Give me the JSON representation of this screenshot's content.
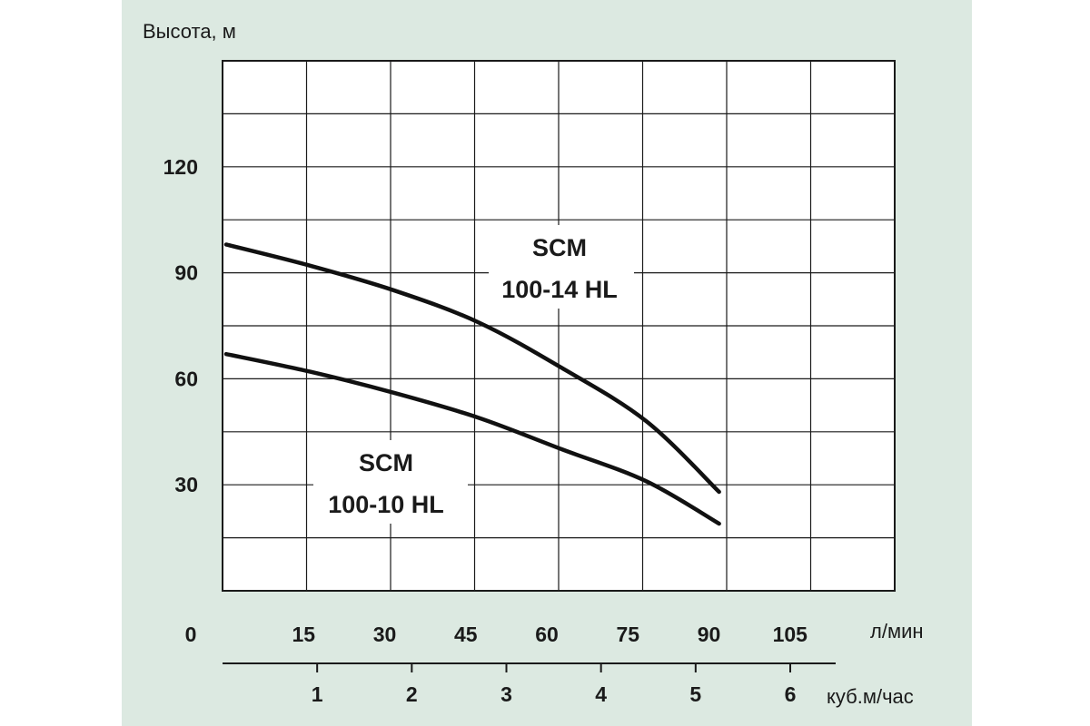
{
  "chart_data": {
    "type": "line",
    "y_axis": {
      "label": "Высота, м",
      "ticks": [
        30,
        60,
        90,
        120
      ],
      "range": [
        0,
        150
      ]
    },
    "x_axis_primary": {
      "unit_label": "л/мин",
      "ticks": [
        0,
        15,
        30,
        45,
        60,
        75,
        90,
        105
      ],
      "range": [
        0,
        120
      ]
    },
    "x_axis_secondary": {
      "unit_label": "куб.м/час",
      "ticks": [
        1,
        2,
        3,
        4,
        5,
        6
      ]
    },
    "grid": true,
    "series": [
      {
        "name": "SCM 100-14 HL",
        "label_lines": [
          "SCM",
          "100-14 HL"
        ],
        "color": "#111111",
        "x": [
          0,
          15,
          30,
          45,
          60,
          75,
          88
        ],
        "y": [
          98,
          92,
          85,
          76,
          63,
          48,
          28
        ]
      },
      {
        "name": "SCM 100-10 HL",
        "label_lines": [
          "SCM",
          "100-10 HL"
        ],
        "color": "#111111",
        "x": [
          0,
          15,
          30,
          45,
          60,
          75,
          88
        ],
        "y": [
          67,
          62,
          56,
          49,
          40,
          31,
          19
        ]
      }
    ]
  }
}
